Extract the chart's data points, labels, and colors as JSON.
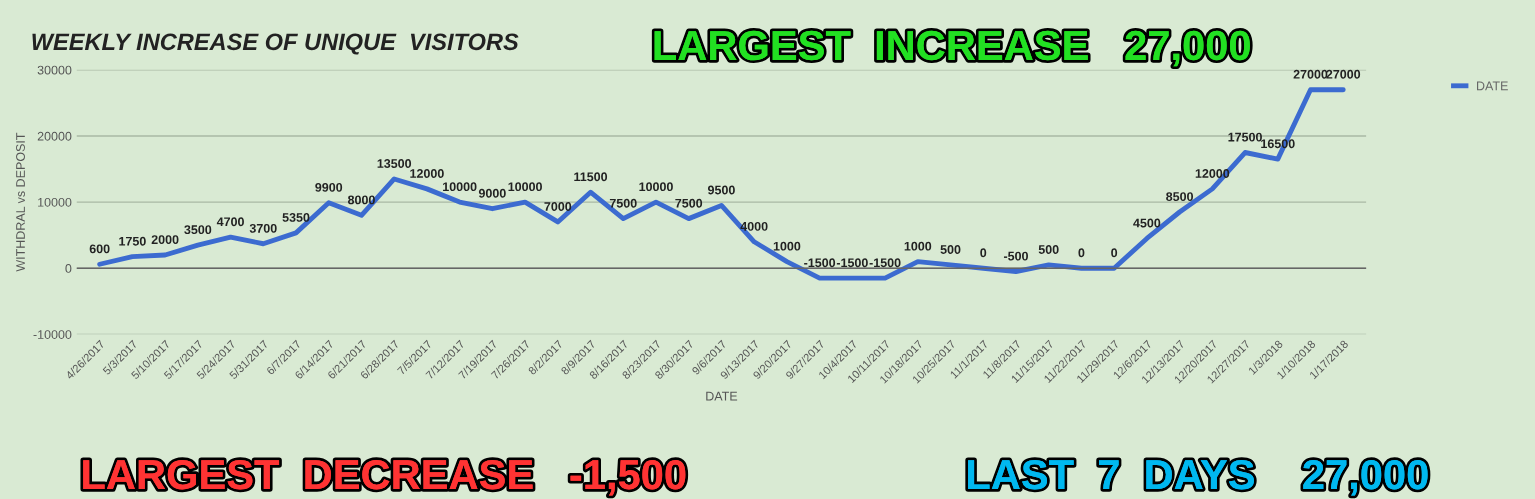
{
  "chart_data": {
    "type": "line",
    "title": "WEEKLY INCREASE OF UNIQUE  VISITORS",
    "xlabel": "DATE",
    "ylabel": "WITHDRAL vs DEPOSIT",
    "categories": [
      "4/26/2017",
      "5/3/2017",
      "5/10/2017",
      "5/17/2017",
      "5/24/2017",
      "5/31/2017",
      "6/7/2017",
      "6/14/2017",
      "6/21/2017",
      "6/28/2017",
      "7/5/2017",
      "7/12/2017",
      "7/19/2017",
      "7/26/2017",
      "8/2/2017",
      "8/9/2017",
      "8/16/2017",
      "8/23/2017",
      "8/30/2017",
      "9/6/2017",
      "9/13/2017",
      "9/20/2017",
      "9/27/2017",
      "10/4/2017",
      "10/11/2017",
      "10/18/2017",
      "10/25/2017",
      "11/1/2017",
      "11/8/2017",
      "11/15/2017",
      "11/22/2017",
      "11/29/2017",
      "12/6/2017",
      "12/13/2017",
      "12/20/2017",
      "12/27/2017",
      "1/3/2018",
      "1/10/2018",
      "1/17/2018"
    ],
    "series": [
      {
        "name": "DATE",
        "color": "#3c6bd0",
        "values": [
          600,
          1750,
          2000,
          3500,
          4700,
          3700,
          5350,
          9900,
          8000,
          13500,
          12000,
          10000,
          9000,
          10000,
          7000,
          11500,
          7500,
          10000,
          7500,
          9500,
          4000,
          1000,
          -1500,
          -1500,
          -1500,
          1000,
          500,
          0,
          -500,
          500,
          0,
          0,
          4500,
          8500,
          12000,
          17500,
          16500,
          27000,
          27000
        ]
      }
    ],
    "ylim": [
      -10000,
      30000
    ],
    "yticks": [
      -10000,
      0,
      10000,
      20000,
      30000
    ],
    "grid": "y",
    "legend": "top right",
    "data_labels": true,
    "marker": "none",
    "line_style": "solid",
    "annotations": [
      "LARGEST  INCREASE   27,000",
      "LARGEST  DECREASE   -1,500",
      "LAST  7  DAYS    27,000"
    ]
  }
}
